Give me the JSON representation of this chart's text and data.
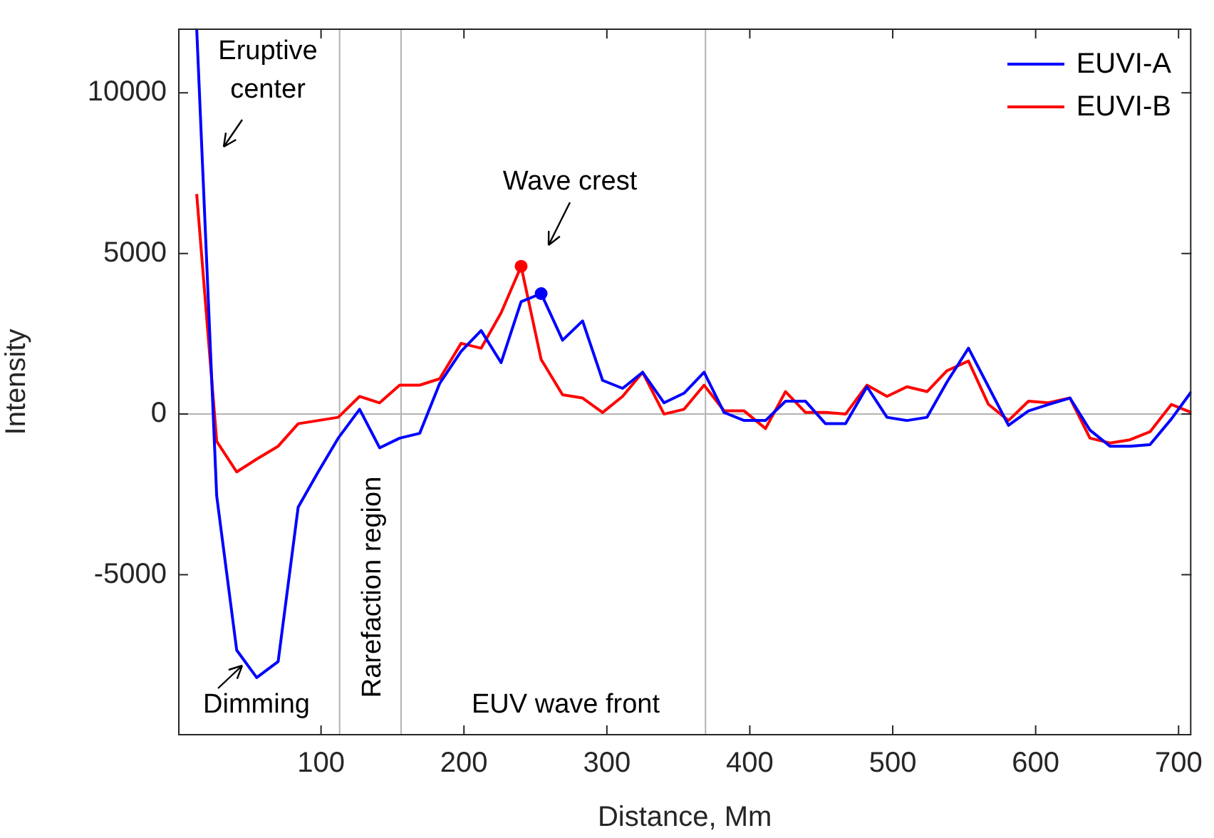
{
  "chart_data": {
    "type": "line",
    "xlabel": "Distance, Mm",
    "ylabel": "Intensity",
    "xlim": [
      0,
      709
    ],
    "xticks": [
      100,
      200,
      300,
      400,
      500,
      600,
      700
    ],
    "ylim": [
      -10000,
      12000
    ],
    "yticks": [
      -5000,
      0,
      5000,
      10000
    ],
    "grid": false,
    "legend": "top right",
    "x": [
      13,
      27,
      41,
      55,
      70,
      84,
      98,
      112,
      127,
      141,
      155,
      169,
      183,
      198,
      212,
      226,
      240,
      254,
      269,
      283,
      297,
      311,
      325,
      340,
      354,
      368,
      382,
      396,
      411,
      425,
      439,
      453,
      467,
      482,
      496,
      510,
      524,
      538,
      553,
      567,
      581,
      595,
      609,
      624,
      638,
      652,
      666,
      680,
      695,
      709
    ],
    "series": [
      {
        "name": "EUVI-A",
        "color": "#0000ff",
        "values": [
          12000,
          -2550,
          -7350,
          -8200,
          -7700,
          -2900,
          -1800,
          -750,
          150,
          -1050,
          -750,
          -600,
          950,
          1950,
          2600,
          1600,
          3500,
          3750,
          2300,
          2900,
          1050,
          800,
          1300,
          350,
          650,
          1300,
          50,
          -200,
          -200,
          400,
          400,
          -300,
          -300,
          850,
          -100,
          -200,
          -100,
          1000,
          2050,
          850,
          -350,
          100,
          300,
          500,
          -500,
          -1000,
          -1000,
          -950,
          -150,
          700
        ]
      },
      {
        "name": "EUVI-B",
        "color": "#ff0000",
        "values": [
          6850,
          -850,
          -1800,
          -1400,
          -1000,
          -300,
          -200,
          -100,
          550,
          350,
          900,
          900,
          1100,
          2200,
          2050,
          3150,
          4600,
          1700,
          600,
          500,
          50,
          550,
          1300,
          0,
          150,
          900,
          100,
          100,
          -450,
          700,
          50,
          50,
          0,
          900,
          550,
          850,
          700,
          1350,
          1650,
          300,
          -200,
          400,
          350,
          500,
          -750,
          -900,
          -800,
          -550,
          300,
          50
        ]
      },
      {
        "type": "scatter",
        "marker": "circle",
        "color": "#0000ff",
        "x": [
          254
        ],
        "values": [
          3750
        ]
      },
      {
        "type": "scatter",
        "marker": "circle",
        "color": "#ff0000",
        "x": [
          240
        ],
        "values": [
          4600
        ]
      }
    ],
    "ref_lines": [
      {
        "axis": "x",
        "value": 113,
        "color": "#b3b3b3"
      },
      {
        "axis": "x",
        "value": 156,
        "color": "#b3b3b3"
      },
      {
        "axis": "x",
        "value": 369,
        "color": "#b3b3b3"
      },
      {
        "axis": "y",
        "value": 0,
        "color": "#b3b3b3"
      }
    ],
    "annotations": [
      "Eruptive center",
      "Wave crest",
      "Dimming",
      "Rarefaction region",
      "EUV wave front"
    ]
  }
}
